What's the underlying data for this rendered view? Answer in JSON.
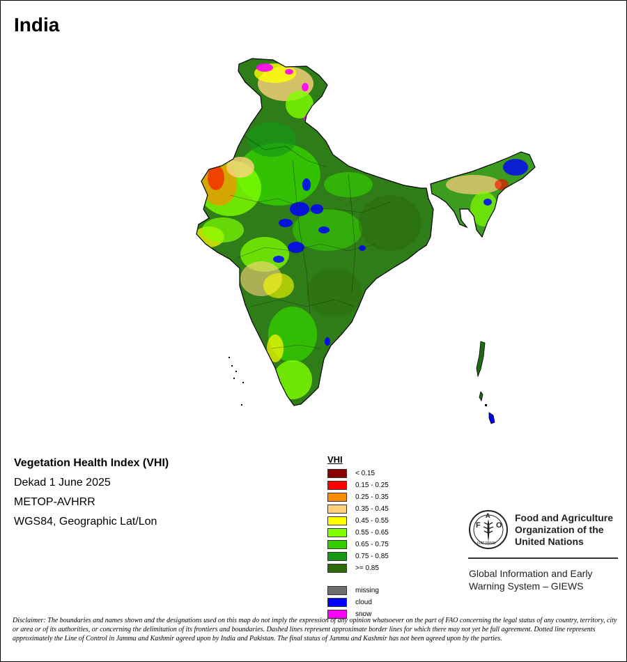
{
  "map": {
    "title": "India",
    "colors": {
      "country_base": "#2e8b1a",
      "border": "#000000",
      "ocean": "#ffffff"
    }
  },
  "info": {
    "index_name": "Vegetation Health Index (VHI)",
    "period": "Dekad 1 June 2025",
    "sensor": "METOP-AVHRR",
    "projection": "WGS84, Geographic Lat/Lon"
  },
  "legend": {
    "title": "VHI",
    "classes": [
      {
        "label": "< 0.15",
        "color": "#8b0000"
      },
      {
        "label": "0.15 - 0.25",
        "color": "#ff0000"
      },
      {
        "label": "0.25 - 0.35",
        "color": "#ff8c00"
      },
      {
        "label": "0.35 - 0.45",
        "color": "#ffd27f"
      },
      {
        "label": "0.45 - 0.55",
        "color": "#ffff00"
      },
      {
        "label": "0.55 - 0.65",
        "color": "#80ff00"
      },
      {
        "label": "0.65 - 0.75",
        "color": "#33cc00"
      },
      {
        "label": "0.75 - 0.85",
        "color": "#159915"
      },
      {
        "label": ">= 0.85",
        "color": "#2e6b0d"
      }
    ],
    "special": [
      {
        "label": "missing",
        "color": "#6e6e6e"
      },
      {
        "label": "cloud",
        "color": "#0000ff"
      },
      {
        "label": "snow",
        "color": "#ff00ff"
      }
    ]
  },
  "organization": {
    "logo_icon": "fao-logo-icon",
    "logo_text": "FAO",
    "logo_motto": "FIAT PANIS",
    "name_lines": [
      "Food and Agriculture",
      "Organization of the",
      "United Nations"
    ],
    "program_lines": [
      "Global Information and Early",
      "Warning System – GIEWS"
    ]
  },
  "disclaimer": "Disclaimer: The boundaries and names shown and the designations used on this map do not imply the expression of any opinion whatsoever on the part of FAO concerning the legal status of any country, territory, city or area or of its authorities, or concerning the delimitation of its frontiers and boundaries. Dashed lines represent approximate border lines for which there may not yet be full agreement. Dotted line represents approximately the Line of Control in Jammu and Kashmir agreed upon by India and Pakistan. The final status of Jammu and Kashmir has not been agreed upon by the parties."
}
